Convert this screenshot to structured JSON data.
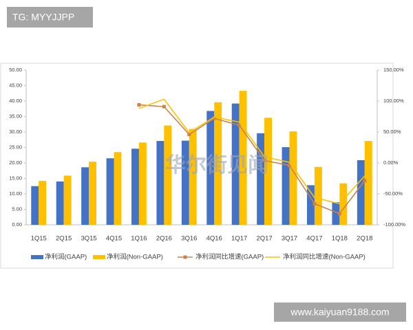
{
  "overlays": {
    "tag": "TG: MYYJJPP",
    "site": "www.kaiyuan9188.com",
    "watermark": "华尔街见闻"
  },
  "chart_data": {
    "type": "bar",
    "categories": [
      "1Q15",
      "2Q15",
      "3Q15",
      "4Q15",
      "1Q16",
      "2Q16",
      "3Q16",
      "4Q16",
      "1Q17",
      "2Q17",
      "3Q17",
      "4Q17",
      "1Q18",
      "2Q18"
    ],
    "series": [
      {
        "name": "净利润(GAAP)",
        "type": "bar",
        "color": "#4472c4",
        "values": [
          12.5,
          14.0,
          18.6,
          21.5,
          24.6,
          27.1,
          27.2,
          36.8,
          39.2,
          29.6,
          25.1,
          12.8,
          7.3,
          20.9
        ]
      },
      {
        "name": "净利润(Non-GAAP)",
        "type": "bar",
        "color": "#ffc000",
        "values": [
          14.2,
          15.9,
          20.4,
          23.5,
          26.6,
          32.1,
          31.0,
          39.6,
          43.3,
          34.6,
          30.2,
          18.7,
          13.4,
          27.1
        ]
      },
      {
        "name": "净利润同比增速(GAAP)",
        "type": "line",
        "axis": "y2",
        "marker": "square",
        "color": "#c8834f",
        "values": [
          null,
          null,
          null,
          null,
          94,
          91,
          46,
          72,
          61,
          4,
          -4,
          -66,
          -82,
          -29
        ]
      },
      {
        "name": "净利润同比增速(Non-GAAP)",
        "type": "line",
        "axis": "y2",
        "color": "#ffc000",
        "values": [
          null,
          null,
          null,
          null,
          88,
          103,
          49,
          74,
          66,
          10,
          1,
          -56,
          -66,
          -21
        ]
      }
    ],
    "ylim": [
      0,
      50
    ],
    "yticks": [
      {
        "value": 0,
        "label": "0.00"
      },
      {
        "value": 5,
        "label": "5.00"
      },
      {
        "value": 10,
        "label": "10.00"
      },
      {
        "value": 15,
        "label": "15.00"
      },
      {
        "value": 20,
        "label": "20.00"
      },
      {
        "value": 25,
        "label": "25.00"
      },
      {
        "value": 30,
        "label": "30.00"
      },
      {
        "value": 35,
        "label": "35.00"
      },
      {
        "value": 40,
        "label": "40.00"
      },
      {
        "value": 45,
        "label": "45.00"
      },
      {
        "value": 50,
        "label": "50.00"
      }
    ],
    "y2lim": [
      -100,
      150
    ],
    "y2ticks": [
      {
        "value": -100,
        "label": "-100.00%"
      },
      {
        "value": -50,
        "label": "-50.00%"
      },
      {
        "value": 0,
        "label": "0.00%"
      },
      {
        "value": 50,
        "label": "50.00%"
      },
      {
        "value": 100,
        "label": "100.00%"
      },
      {
        "value": 150,
        "label": "150.00%"
      }
    ],
    "grid": false,
    "legend": "bottom"
  }
}
